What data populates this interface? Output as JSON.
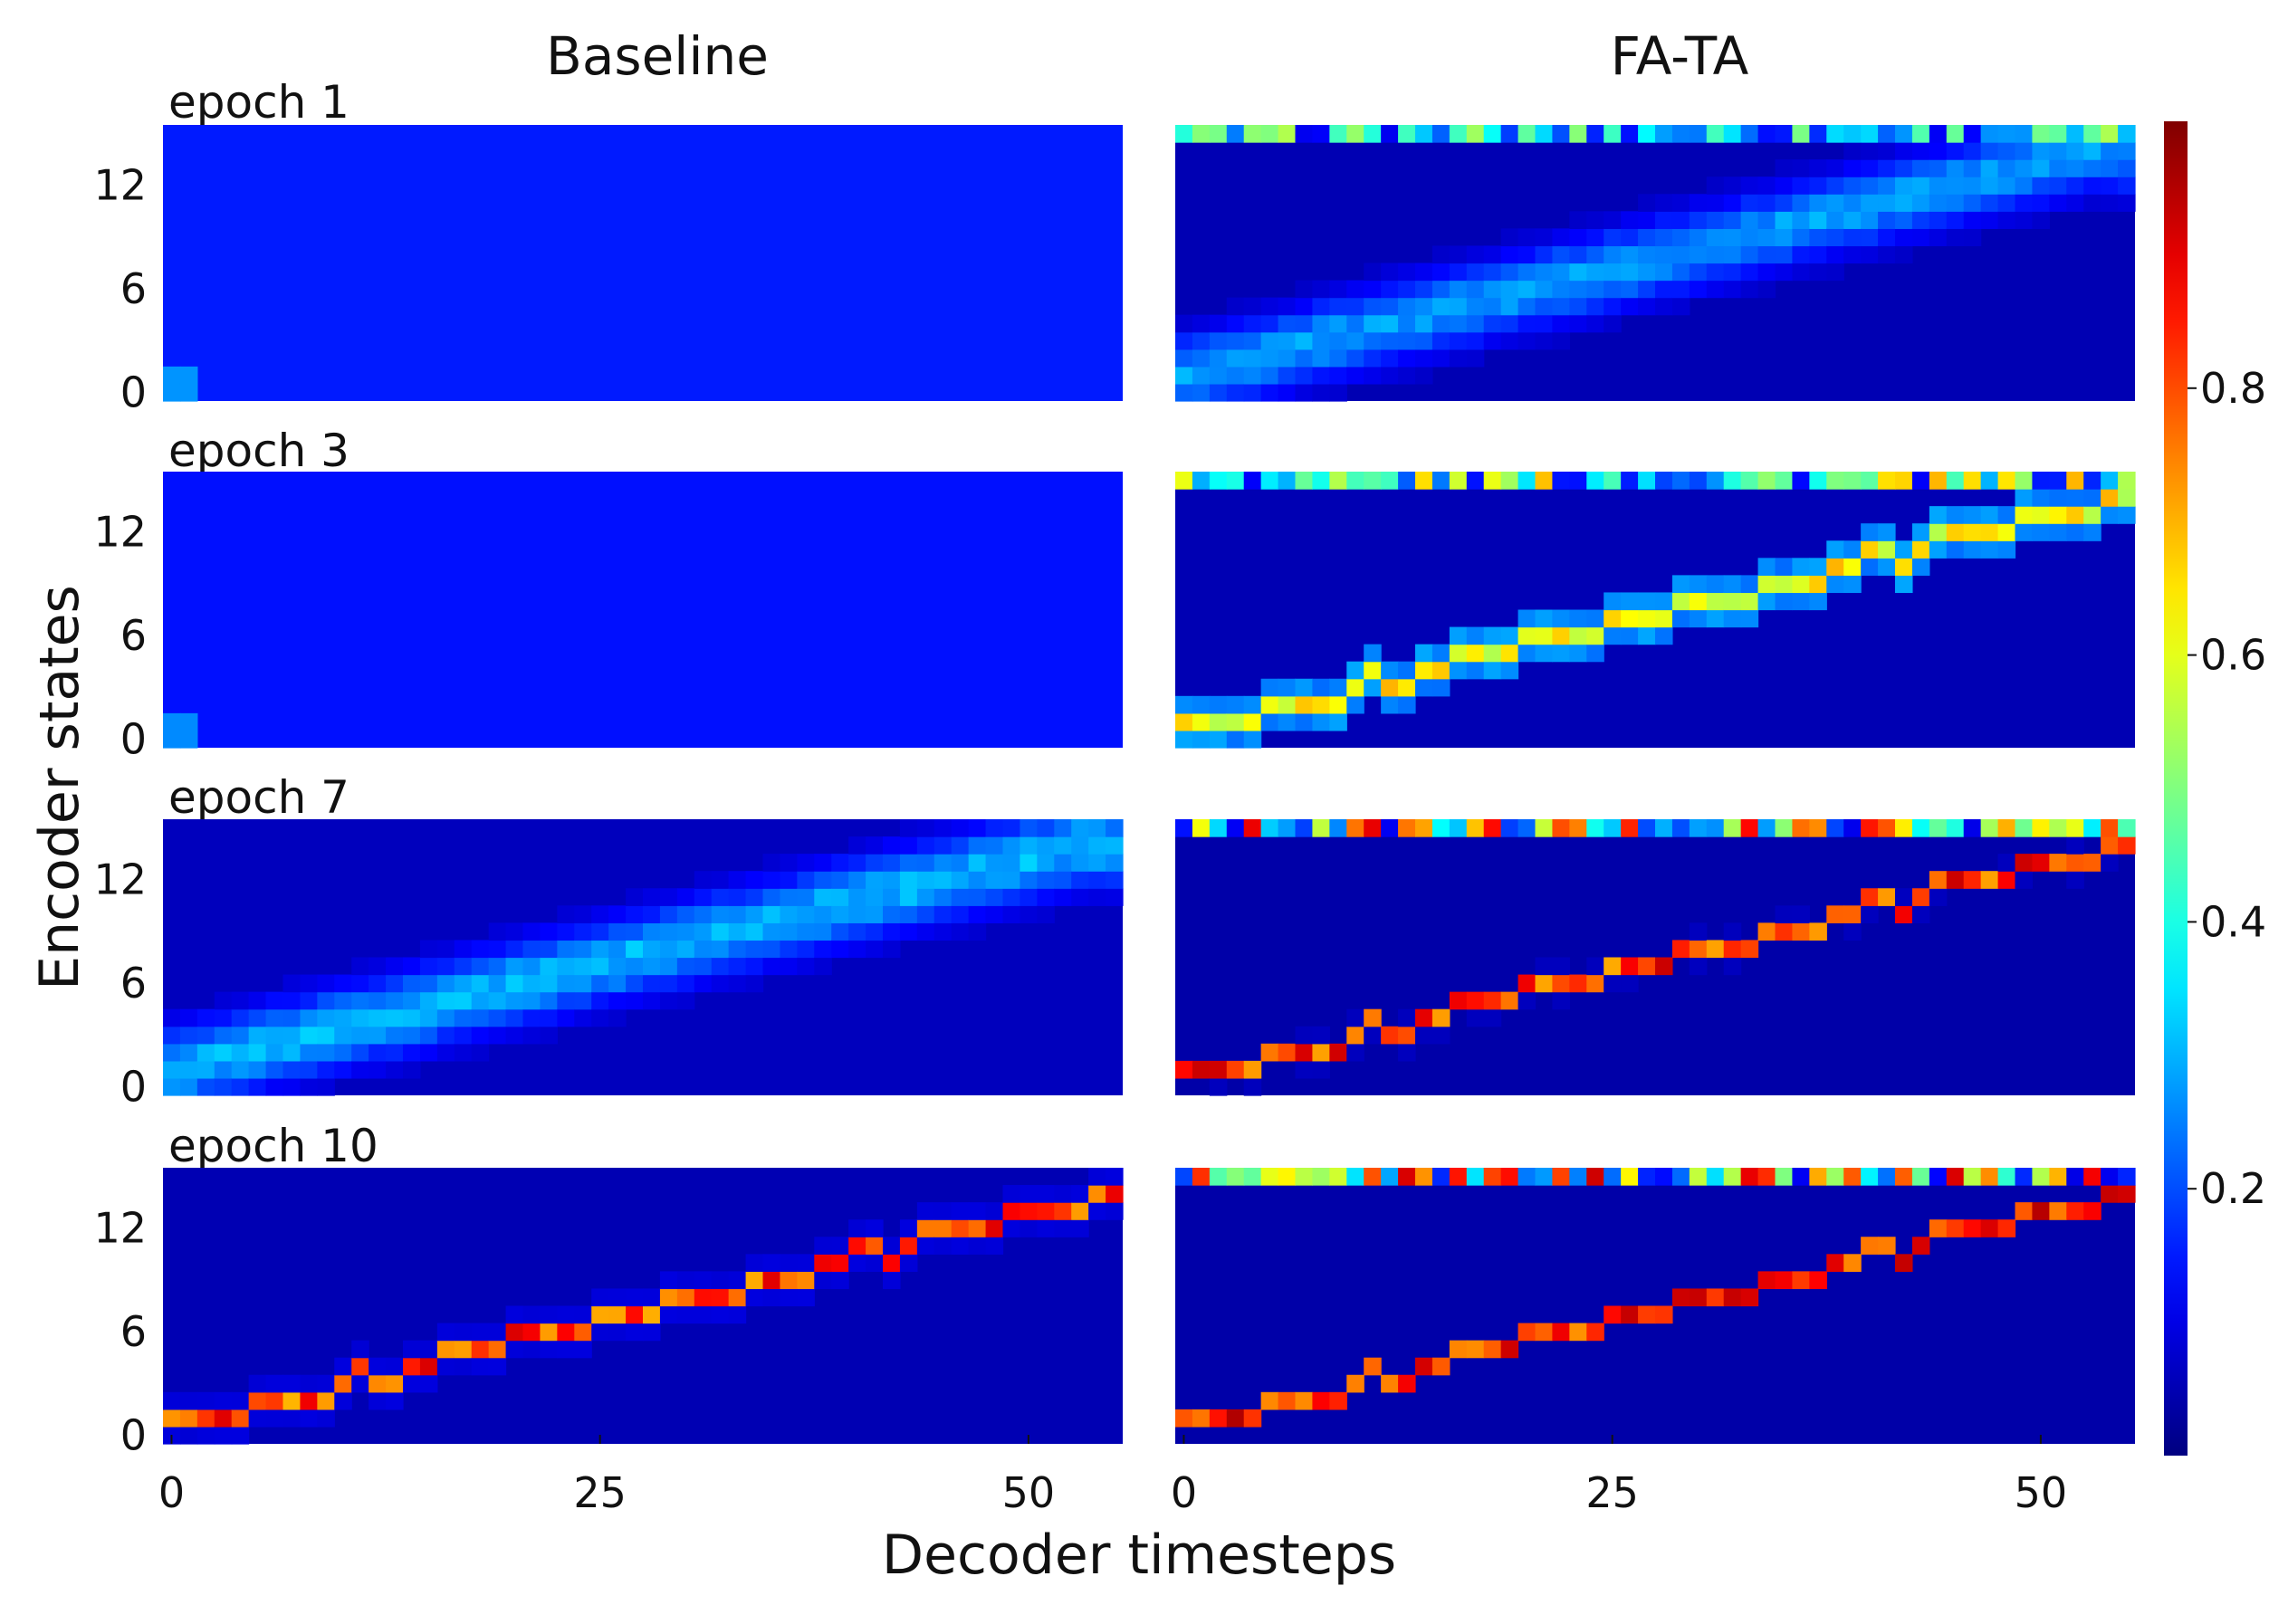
{
  "chart_data": {
    "type": "heatmap",
    "title": "",
    "xlabel": "Decoder timesteps",
    "ylabel": "Encoder states",
    "columns": [
      "Baseline",
      "FA-TA"
    ],
    "rows": [
      "epoch 1",
      "epoch 3",
      "epoch 7",
      "epoch 10"
    ],
    "x_ticks": [
      0,
      25,
      50
    ],
    "y_ticks": [
      0,
      6,
      12
    ],
    "xlim": [
      0,
      55
    ],
    "ylim": [
      0,
      15
    ],
    "colormap": "jet",
    "colorbar_ticks": [
      "0.2",
      "0.4",
      "0.6",
      "0.8"
    ],
    "colorbar_range": [
      0,
      1
    ],
    "colors": {
      "low": "#00008f",
      "high": "#800000"
    },
    "panels": [
      {
        "column": "Baseline",
        "row": "epoch 1",
        "sharpness": 0.0,
        "diagonal": "none",
        "background": 0.15
      },
      {
        "column": "FA-TA",
        "row": "epoch 1",
        "sharpness": 0.2,
        "diagonal": "smooth",
        "background": 0.05,
        "top_row_noise": true
      },
      {
        "column": "Baseline",
        "row": "epoch 3",
        "sharpness": 0.05,
        "diagonal": "none",
        "background": 0.14
      },
      {
        "column": "FA-TA",
        "row": "epoch 3",
        "sharpness": 0.5,
        "diagonal": "staircase",
        "background": 0.05,
        "top_row_noise": true
      },
      {
        "column": "Baseline",
        "row": "epoch 7",
        "sharpness": 0.3,
        "diagonal": "smooth",
        "background": 0.06
      },
      {
        "column": "FA-TA",
        "row": "epoch 7",
        "sharpness": 0.9,
        "diagonal": "staircase",
        "background": 0.04,
        "top_row_noise": true
      },
      {
        "column": "Baseline",
        "row": "epoch 10",
        "sharpness": 0.85,
        "diagonal": "staircase",
        "background": 0.05
      },
      {
        "column": "FA-TA",
        "row": "epoch 10",
        "sharpness": 0.95,
        "diagonal": "staircase",
        "background": 0.04,
        "top_row_noise": true
      }
    ]
  }
}
